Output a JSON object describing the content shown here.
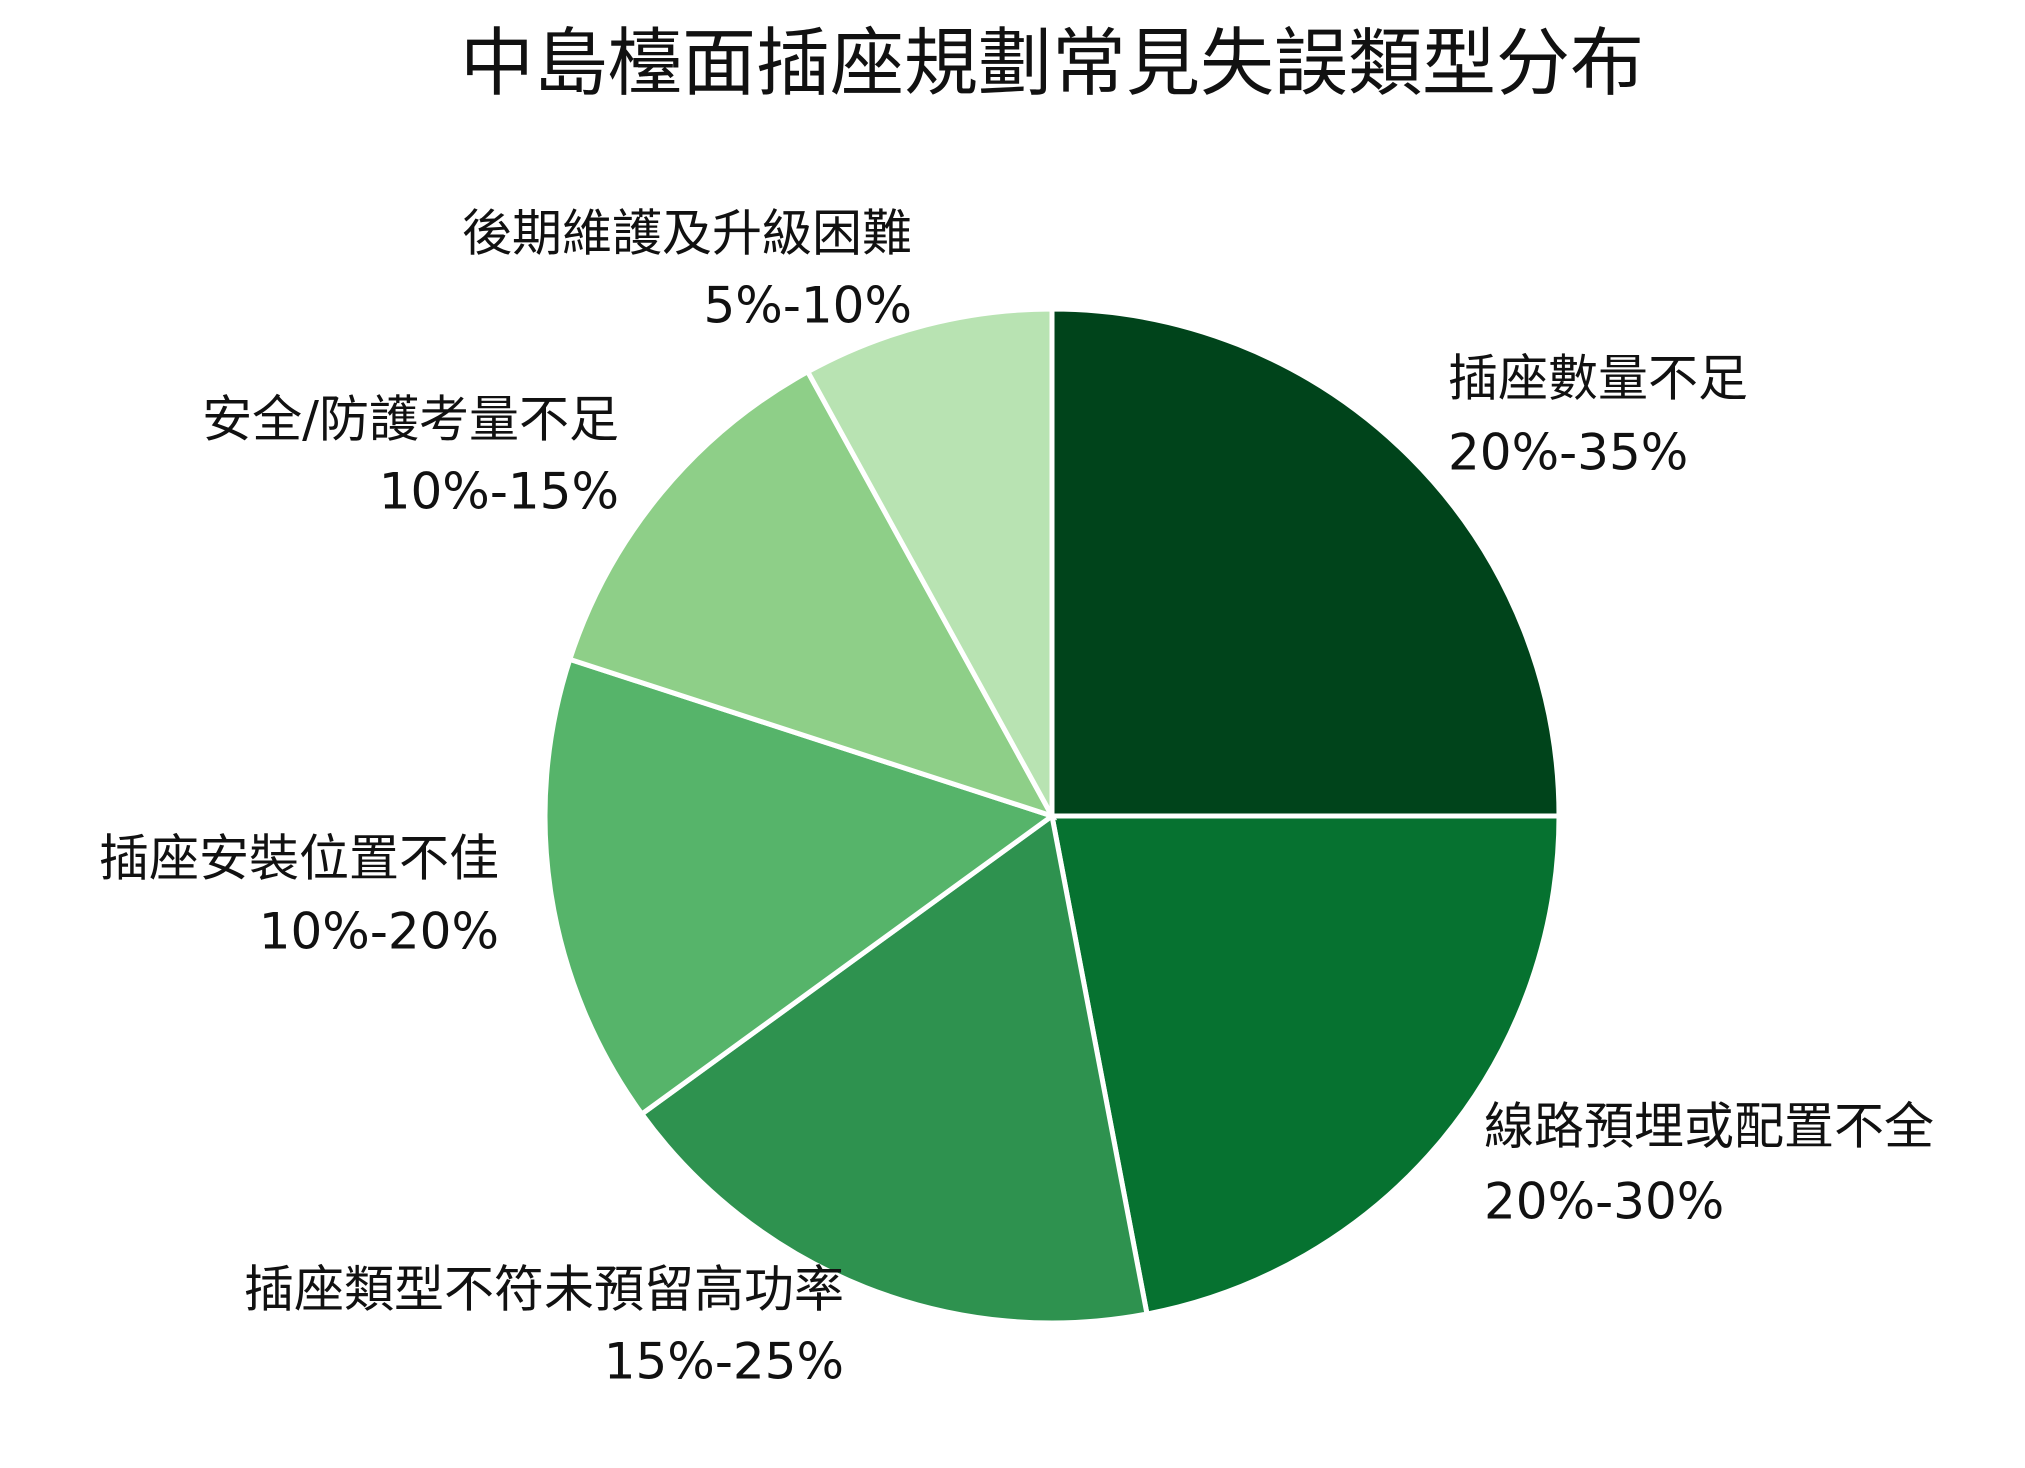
{
  "chart_data": {
    "type": "pie",
    "title": "中島檯面插座規劃常見失誤類型分布",
    "categories": [
      "插座數量不足",
      "線路預埋或配置不全",
      "插座類型不符未預留高功率",
      "插座安裝位置不佳",
      "安全/防護考量不足",
      "後期維護及升級困難"
    ],
    "ranges": [
      "20%-35%",
      "20%-30%",
      "15%-25%",
      "10%-20%",
      "10%-15%",
      "5%-10%"
    ],
    "values": [
      25,
      22,
      18,
      15,
      12,
      8
    ],
    "colors": [
      "#00441b",
      "#067230",
      "#2e924f",
      "#56b46a",
      "#8ecf88",
      "#b8e3b2"
    ],
    "start_angle": 90,
    "direction": "clockwise"
  }
}
